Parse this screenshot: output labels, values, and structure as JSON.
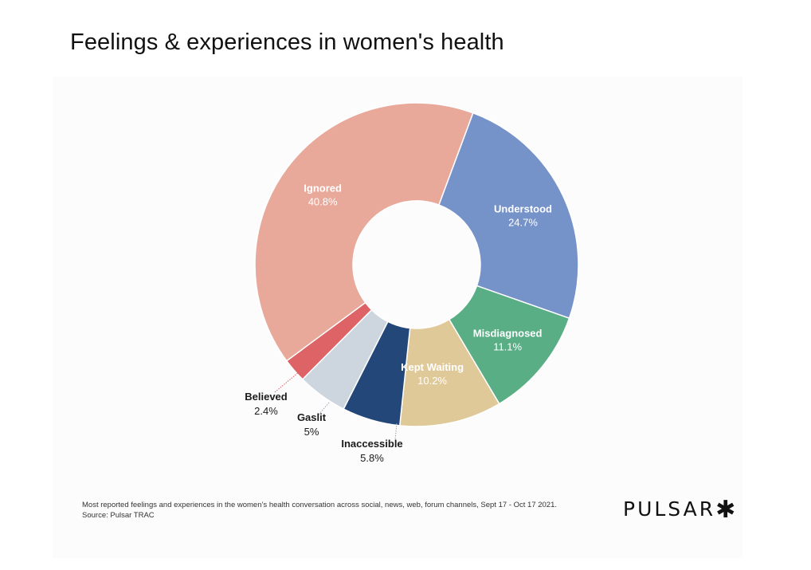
{
  "page": {
    "title": "Feelings & experiences in women's health",
    "footnote_line1": "Most reported feelings and experiences in the women’s health conversation across social, news, web, forum channels, Sept 17 - Oct 17 2021.",
    "footnote_line2": "Source: Pulsar TRAC",
    "logo_text": "PULSAR",
    "logo_mark": "✱"
  },
  "chart_data": {
    "type": "pie",
    "donut": true,
    "start_angle_deg": 20.4,
    "legend": "none",
    "slices": [
      {
        "label": "Understood",
        "value": 24.7,
        "value_label": "24.7%",
        "color": "#7592c9"
      },
      {
        "label": "Misdiagnosed",
        "value": 11.1,
        "value_label": "11.1%",
        "color": "#5aae86"
      },
      {
        "label": "Kept Waiting",
        "value": 10.2,
        "value_label": "10.2%",
        "color": "#e0c998"
      },
      {
        "label": "Inaccessible",
        "value": 5.8,
        "value_label": "5.8%",
        "color": "#24477a"
      },
      {
        "label": "Gaslit",
        "value": 5,
        "value_label": "5%",
        "color": "#cdd6df"
      },
      {
        "label": "Believed",
        "value": 2.4,
        "value_label": "2.4%",
        "color": "#de6366"
      },
      {
        "label": "Ignored",
        "value": 40.8,
        "value_label": "40.8%",
        "color": "#e8a99b"
      }
    ]
  }
}
